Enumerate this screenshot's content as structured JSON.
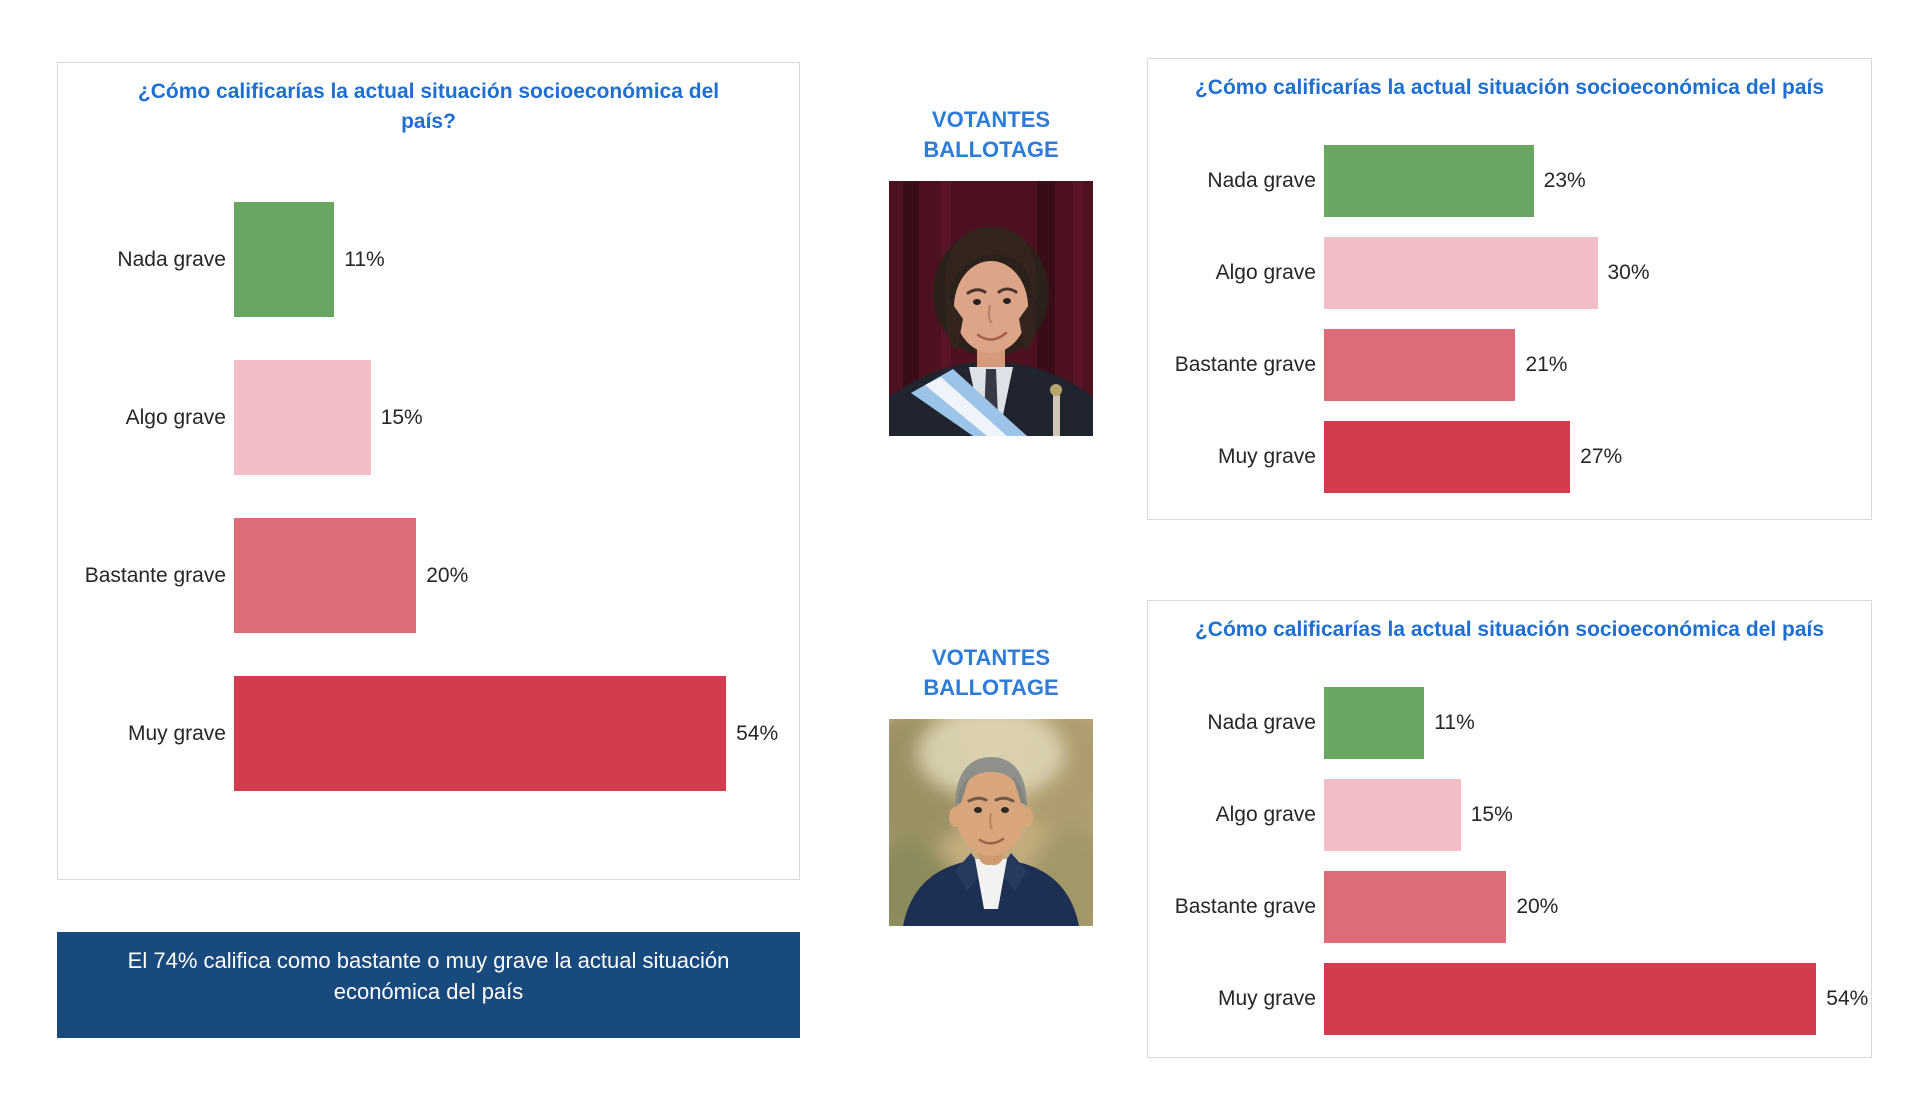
{
  "colors": {
    "title_blue": "#1f6fd0",
    "votantes_blue": "#2e7cd9",
    "banner_bg": "#194a7d",
    "banner_text": "#ffffff",
    "box_border": "#d9d9d9",
    "bar_palette": [
      "#68a661",
      "#f2bdc6",
      "#de6b78",
      "#d23c4e"
    ],
    "label_text": "#262626"
  },
  "categories": [
    "Nada grave",
    "Algo grave",
    "Bastante grave",
    "Muy grave"
  ],
  "charts": [
    {
      "title": "¿Cómo calificarías la actual situación socioeconómica del país?",
      "title_lines": [
        "¿Cómo calificarías la actual situación socioeconómica del",
        "país?"
      ],
      "values": [
        11,
        15,
        20,
        54
      ],
      "value_labels": [
        "11%",
        "15%",
        "20%",
        "54%"
      ],
      "axis_max": 62
    },
    {
      "title": "¿Cómo calificarías la actual situación socioeconómica del país",
      "title_lines": [
        "¿Cómo calificarías la actual situación socioeconómica del país"
      ],
      "values": [
        23,
        30,
        21,
        27
      ],
      "value_labels": [
        "23%",
        "30%",
        "21%",
        "27%"
      ],
      "axis_max": 60
    },
    {
      "title": "¿Cómo calificarías la actual situación socioeconómica del país",
      "title_lines": [
        "¿Cómo calificarías la actual situación socioeconómica del país"
      ],
      "values": [
        11,
        15,
        20,
        54
      ],
      "value_labels": [
        "11%",
        "15%",
        "20%",
        "54%"
      ],
      "axis_max": 60
    }
  ],
  "voters": [
    {
      "label_lines": [
        "VOTANTES",
        "BALLOTAGE"
      ]
    },
    {
      "label_lines": [
        "VOTANTES",
        "BALLOTAGE"
      ]
    }
  ],
  "banner": {
    "text": "El 74% califica como bastante o muy grave la actual situación económica del país",
    "lines": [
      "El 74% califica como bastante o muy grave la actual situación",
      "económica del país"
    ]
  },
  "chart_data": [
    {
      "type": "bar",
      "orientation": "horizontal",
      "title": "¿Cómo calificarías la actual situación socioeconómica del país?",
      "categories": [
        "Nada grave",
        "Algo grave",
        "Bastante grave",
        "Muy grave"
      ],
      "values": [
        11,
        15,
        20,
        54
      ],
      "data_labels": [
        "11%",
        "15%",
        "20%",
        "54%"
      ],
      "unit": "%",
      "bar_colors": [
        "#68a661",
        "#f2bdc6",
        "#de6b78",
        "#d23c4e"
      ],
      "xlim": [
        0,
        62
      ],
      "grid": false,
      "legend": false
    },
    {
      "type": "bar",
      "orientation": "horizontal",
      "title": "¿Cómo calificarías la actual situación socioeconómica del país",
      "group_label": "VOTANTES BALLOTAGE",
      "categories": [
        "Nada grave",
        "Algo grave",
        "Bastante grave",
        "Muy grave"
      ],
      "values": [
        23,
        30,
        21,
        27
      ],
      "data_labels": [
        "23%",
        "30%",
        "21%",
        "27%"
      ],
      "unit": "%",
      "bar_colors": [
        "#68a661",
        "#f2bdc6",
        "#de6b78",
        "#d23c4e"
      ],
      "xlim": [
        0,
        60
      ],
      "grid": false,
      "legend": false
    },
    {
      "type": "bar",
      "orientation": "horizontal",
      "title": "¿Cómo calificarías la actual situación socioeconómica del país",
      "group_label": "VOTANTES BALLOTAGE",
      "categories": [
        "Nada grave",
        "Algo grave",
        "Bastante grave",
        "Muy grave"
      ],
      "values": [
        11,
        15,
        20,
        54
      ],
      "data_labels": [
        "11%",
        "15%",
        "20%",
        "54%"
      ],
      "unit": "%",
      "bar_colors": [
        "#68a661",
        "#f2bdc6",
        "#de6b78",
        "#d23c4e"
      ],
      "xlim": [
        0,
        60
      ],
      "grid": false,
      "legend": false
    }
  ]
}
